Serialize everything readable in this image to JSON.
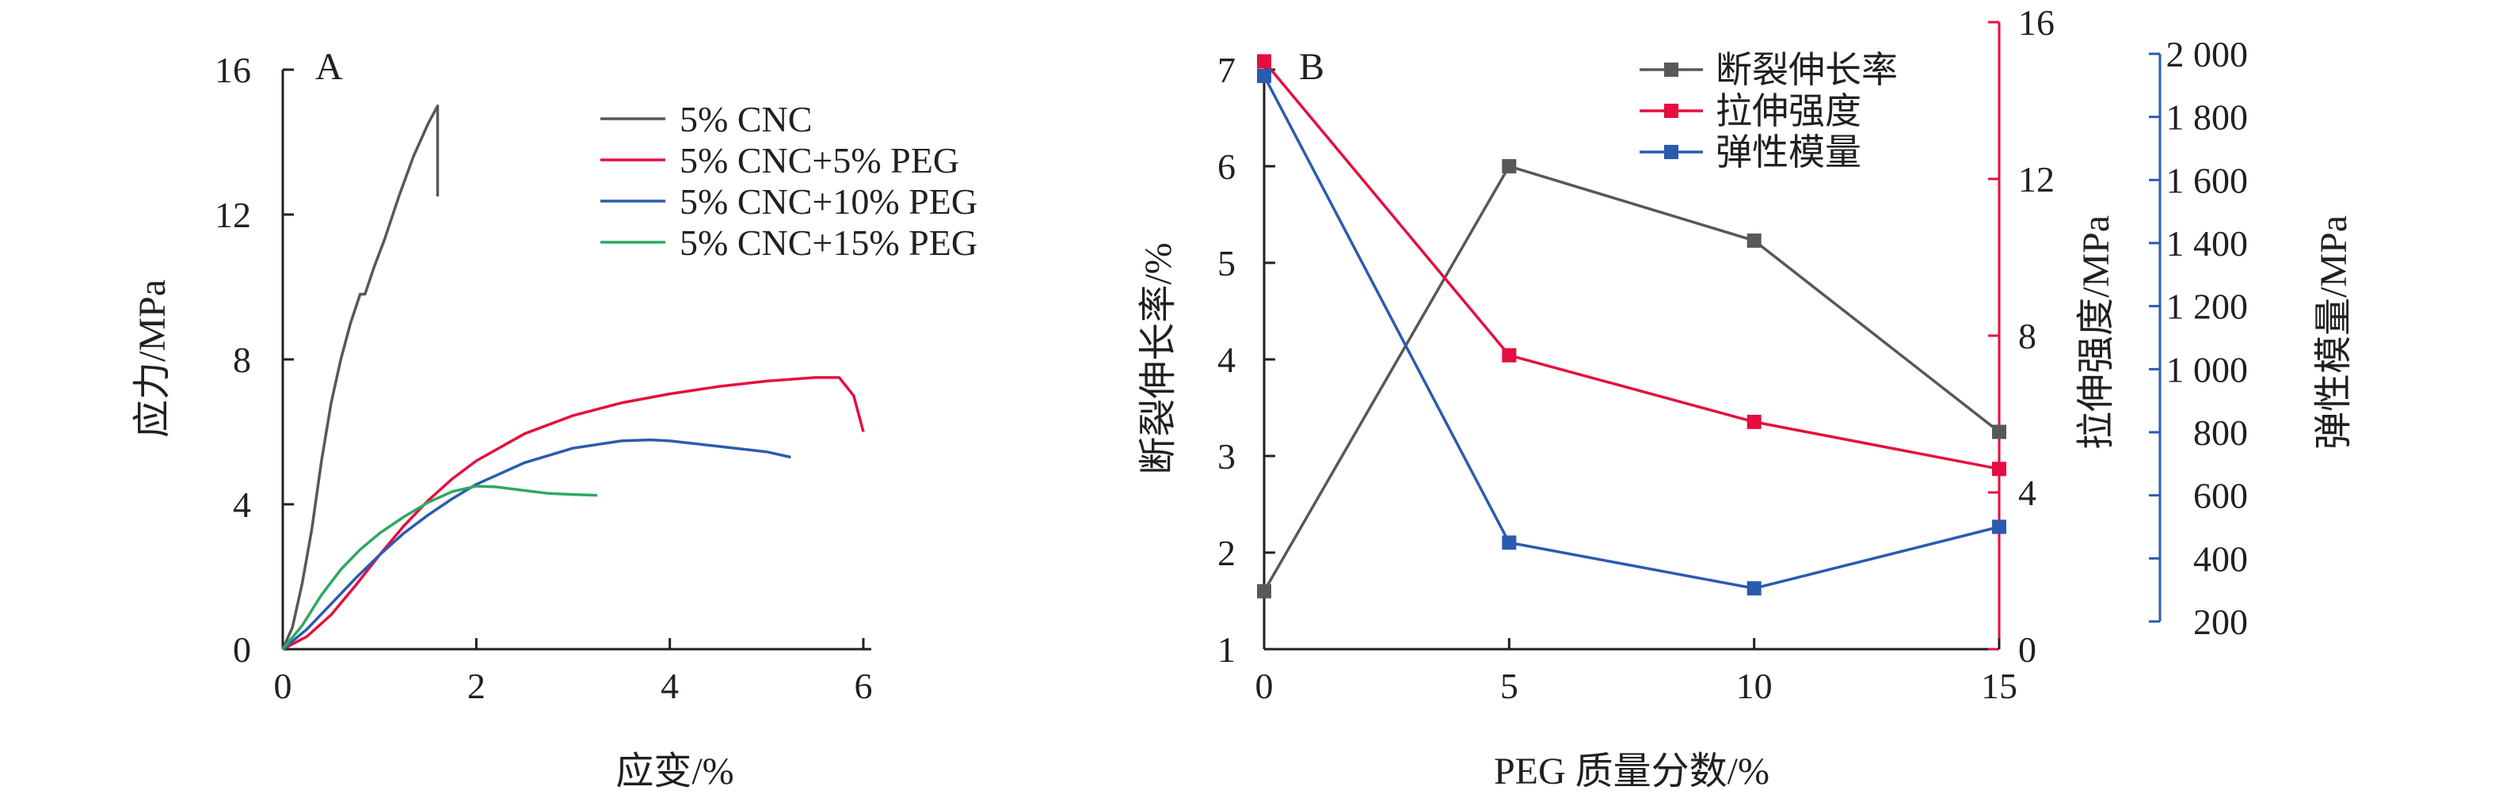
{
  "chart_data": [
    {
      "type": "line",
      "panel_label": "A",
      "xlabel": "应变/%",
      "ylabel": "应力/MPa",
      "xlim": [
        0,
        6
      ],
      "ylim": [
        0,
        16
      ],
      "xticks": [
        "0",
        "2",
        "4",
        "6"
      ],
      "yticks": [
        "0",
        "4",
        "8",
        "12",
        "16"
      ],
      "grid": false,
      "legend_position": "top-right",
      "series": [
        {
          "name": "5% CNC",
          "color": "#595757",
          "x": [
            0,
            0.1,
            0.2,
            0.3,
            0.4,
            0.5,
            0.6,
            0.7,
            0.8,
            0.85,
            0.95,
            1.05,
            1.2,
            1.35,
            1.5,
            1.6,
            1.6
          ],
          "y": [
            0,
            0.6,
            1.8,
            3.3,
            5.2,
            6.8,
            8.0,
            9.0,
            9.8,
            9.8,
            10.6,
            11.3,
            12.5,
            13.6,
            14.5,
            15.0,
            12.5
          ]
        },
        {
          "name": "5% CNC+5% PEG",
          "color": "#e60e3f",
          "x": [
            0,
            0.25,
            0.5,
            0.75,
            1.0,
            1.25,
            1.5,
            1.75,
            2.0,
            2.5,
            3.0,
            3.5,
            4.0,
            4.5,
            5.0,
            5.5,
            5.75,
            5.9,
            6.0
          ],
          "y": [
            0,
            0.35,
            0.95,
            1.75,
            2.6,
            3.4,
            4.1,
            4.7,
            5.2,
            5.95,
            6.45,
            6.8,
            7.05,
            7.25,
            7.4,
            7.5,
            7.5,
            7.0,
            6.0
          ]
        },
        {
          "name": "5% CNC+10% PEG",
          "color": "#2a5bb0",
          "x": [
            0,
            0.25,
            0.5,
            0.75,
            1.0,
            1.25,
            1.5,
            1.75,
            2.0,
            2.5,
            3.0,
            3.5,
            3.8,
            4.0,
            4.5,
            5.0,
            5.25
          ],
          "y": [
            0,
            0.55,
            1.25,
            1.95,
            2.6,
            3.2,
            3.7,
            4.15,
            4.55,
            5.15,
            5.55,
            5.75,
            5.78,
            5.75,
            5.6,
            5.45,
            5.3
          ]
        },
        {
          "name": "5% CNC+15% PEG",
          "color": "#2ea862",
          "x": [
            0,
            0.2,
            0.4,
            0.6,
            0.8,
            1.0,
            1.25,
            1.5,
            1.75,
            2.0,
            2.2,
            2.5,
            2.75,
            3.0,
            3.25
          ],
          "y": [
            0,
            0.65,
            1.5,
            2.2,
            2.75,
            3.2,
            3.65,
            4.05,
            4.35,
            4.5,
            4.48,
            4.38,
            4.3,
            4.27,
            4.25
          ]
        }
      ]
    },
    {
      "type": "line",
      "panel_label": "B",
      "xlabel": "PEG 质量分数/%",
      "x": [
        0,
        5,
        10,
        15
      ],
      "xlim": [
        0,
        15
      ],
      "xticks": [
        "0",
        "5",
        "10",
        "15"
      ],
      "grid": false,
      "legend_position": "top-right",
      "axes": {
        "left": {
          "label": "断裂伸长率/%",
          "lim": [
            1,
            7
          ],
          "ticks": [
            "1",
            "2",
            "3",
            "4",
            "5",
            "6",
            "7"
          ],
          "color": "#231f20"
        },
        "right1": {
          "label": "拉伸强度/MPa",
          "lim": [
            0,
            16
          ],
          "ticks": [
            "0",
            "4",
            "8",
            "12",
            "16"
          ],
          "color": "#e60e3f"
        },
        "right2": {
          "label": "弹性模量/MPa",
          "lim": [
            200,
            2000
          ],
          "ticks": [
            "200",
            "400",
            "600",
            "800",
            "1 000",
            "1 200",
            "1 400",
            "1 600",
            "1 800",
            "2 000"
          ],
          "color": "#2a5bb0"
        }
      },
      "series": [
        {
          "name": "断裂伸长率",
          "axis": "left",
          "color": "#595757",
          "values": [
            1.6,
            6.0,
            5.23,
            3.25
          ]
        },
        {
          "name": "拉伸强度",
          "axis": "right1",
          "color": "#e60e3f",
          "values": [
            15.0,
            7.5,
            5.8,
            4.6
          ]
        },
        {
          "name": "弹性模量",
          "axis": "right2",
          "color": "#2a5bb0",
          "values": [
            1930,
            450,
            305,
            500
          ]
        }
      ]
    }
  ]
}
